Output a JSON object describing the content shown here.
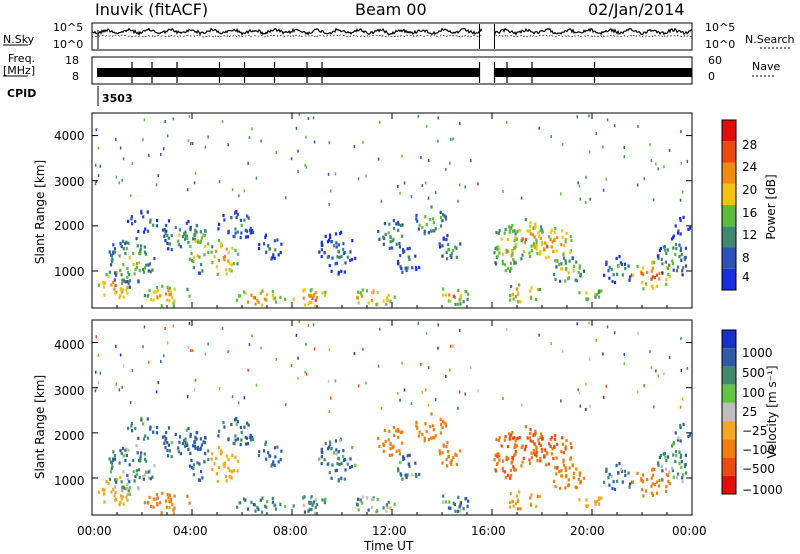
{
  "header": {
    "station": "Inuvik (fitACF)",
    "beam": "Beam 00",
    "date": "02/Jan/2014"
  },
  "noise_panel": {
    "left_label": "N.Sky",
    "right_label": "N.Search",
    "left_ticks": [
      "10^5",
      "10^0"
    ],
    "right_ticks": [
      "10^5",
      "10^0"
    ]
  },
  "freq_panel": {
    "left_label_1": "Freq.",
    "left_label_2": "[MHz]",
    "right_label": "Nave",
    "left_ticks": [
      "18",
      "8"
    ],
    "right_ticks": [
      "60",
      "0"
    ]
  },
  "cpid": {
    "label": "CPID",
    "value": "3503"
  },
  "chart_data": [
    {
      "type": "heatmap",
      "title": "",
      "xlabel": "Time UT",
      "ylabel": "Slant Range [km]",
      "x_ticks": [
        "00:00",
        "04:00",
        "08:00",
        "12:00",
        "16:00",
        "20:00",
        "00:00"
      ],
      "y_ticks": [
        "1000",
        "2000",
        "3000",
        "4000"
      ],
      "xlim": [
        0,
        24
      ],
      "ylim": [
        180,
        4500
      ],
      "colorbar": {
        "label": "Power [dB]",
        "ticks": [
          "4",
          "8",
          "12",
          "16",
          "20",
          "24",
          "28"
        ],
        "range": [
          0,
          30
        ]
      },
      "colors": [
        "#1a2fe0",
        "#2e52b8",
        "#3f8a6e",
        "#5bbd3a",
        "#f3c213",
        "#f08a10",
        "#ec4a10",
        "#e60c0c"
      ]
    },
    {
      "type": "heatmap",
      "title": "",
      "xlabel": "Time UT",
      "ylabel": "Slant Range [km]",
      "x_ticks": [
        "00:00",
        "04:00",
        "08:00",
        "12:00",
        "16:00",
        "20:00",
        "00:00"
      ],
      "y_ticks": [
        "1000",
        "2000",
        "3000",
        "4000"
      ],
      "xlim": [
        0,
        24
      ],
      "ylim": [
        180,
        4500
      ],
      "colorbar": {
        "label": "Velocity [m s⁻¹]",
        "ticks": [
          "1000",
          "500",
          "100",
          "25",
          "−25",
          "−100",
          "−500",
          "−1000"
        ],
        "range": [
          -1000,
          1000
        ]
      },
      "colors": [
        "#1a2fc8",
        "#2f5aa6",
        "#3f8a6e",
        "#62c440",
        "#bdbdbd",
        "#f5a623",
        "#ef7d10",
        "#eb4a10",
        "#e60c0c"
      ]
    }
  ],
  "time_axis": {
    "label": "Time UT",
    "ticks": [
      "00:00",
      "04:00",
      "08:00",
      "12:00",
      "16:00",
      "20:00",
      "00:00"
    ]
  }
}
